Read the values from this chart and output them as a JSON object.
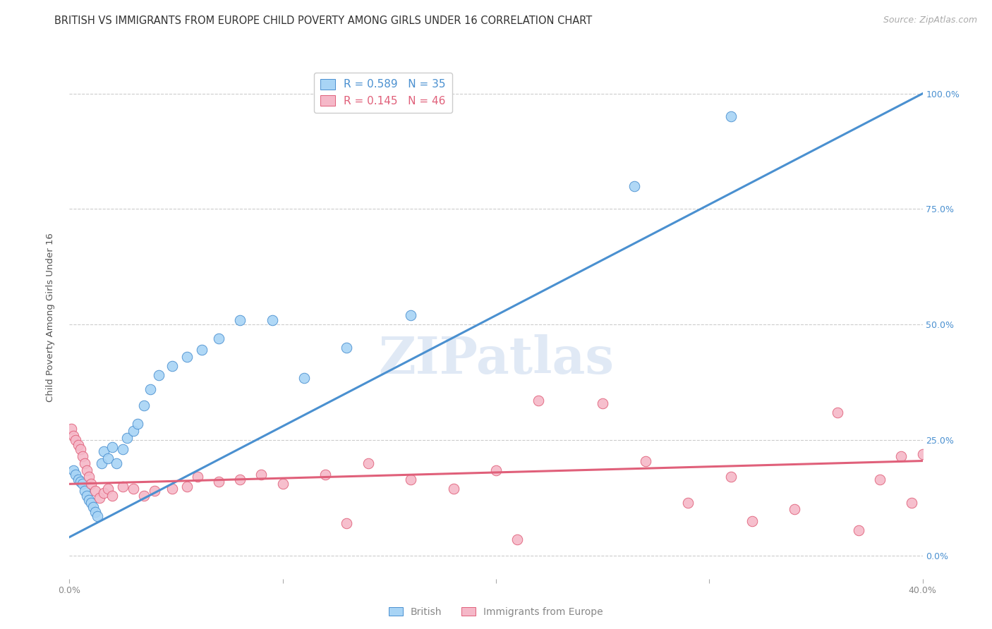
{
  "title": "BRITISH VS IMMIGRANTS FROM EUROPE CHILD POVERTY AMONG GIRLS UNDER 16 CORRELATION CHART",
  "source": "Source: ZipAtlas.com",
  "ylabel": "Child Poverty Among Girls Under 16",
  "xlabel_ticks": [
    "0.0%",
    "",
    "",
    "",
    "40.0%"
  ],
  "ylabel_ticks_right": [
    "0.0%",
    "25.0%",
    "50.0%",
    "75.0%",
    "100.0%"
  ],
  "xlim": [
    0.0,
    0.4
  ],
  "ylim": [
    -0.05,
    1.08
  ],
  "british_R": "0.589",
  "british_N": "35",
  "immigrant_R": "0.145",
  "immigrant_N": "46",
  "british_color": "#A8D4F5",
  "british_line_color": "#4A90D0",
  "immigrant_color": "#F5B8C8",
  "immigrant_line_color": "#E0607A",
  "british_line_x0": 0.0,
  "british_line_y0": 0.04,
  "british_line_x1": 0.4,
  "british_line_y1": 1.0,
  "immigrant_line_x0": 0.0,
  "immigrant_line_y0": 0.155,
  "immigrant_line_x1": 0.4,
  "immigrant_line_y1": 0.205,
  "british_scatter_x": [
    0.002,
    0.003,
    0.004,
    0.005,
    0.006,
    0.007,
    0.008,
    0.009,
    0.01,
    0.011,
    0.012,
    0.013,
    0.015,
    0.016,
    0.018,
    0.02,
    0.022,
    0.025,
    0.027,
    0.03,
    0.032,
    0.035,
    0.038,
    0.042,
    0.048,
    0.055,
    0.062,
    0.07,
    0.08,
    0.095,
    0.11,
    0.13,
    0.16,
    0.265,
    0.31
  ],
  "british_scatter_y": [
    0.185,
    0.175,
    0.165,
    0.16,
    0.155,
    0.14,
    0.13,
    0.12,
    0.115,
    0.105,
    0.095,
    0.085,
    0.2,
    0.225,
    0.21,
    0.235,
    0.2,
    0.23,
    0.255,
    0.27,
    0.285,
    0.325,
    0.36,
    0.39,
    0.41,
    0.43,
    0.445,
    0.47,
    0.51,
    0.51,
    0.385,
    0.45,
    0.52,
    0.8,
    0.95
  ],
  "immigrant_scatter_x": [
    0.001,
    0.002,
    0.003,
    0.004,
    0.005,
    0.006,
    0.007,
    0.008,
    0.009,
    0.01,
    0.012,
    0.014,
    0.016,
    0.018,
    0.02,
    0.025,
    0.03,
    0.035,
    0.04,
    0.048,
    0.055,
    0.06,
    0.07,
    0.08,
    0.09,
    0.1,
    0.12,
    0.14,
    0.16,
    0.18,
    0.2,
    0.22,
    0.25,
    0.27,
    0.29,
    0.31,
    0.32,
    0.34,
    0.36,
    0.37,
    0.38,
    0.39,
    0.395,
    0.4,
    0.21,
    0.13
  ],
  "immigrant_scatter_y": [
    0.275,
    0.26,
    0.25,
    0.24,
    0.23,
    0.215,
    0.2,
    0.185,
    0.17,
    0.155,
    0.14,
    0.125,
    0.135,
    0.145,
    0.13,
    0.15,
    0.145,
    0.13,
    0.14,
    0.145,
    0.15,
    0.17,
    0.16,
    0.165,
    0.175,
    0.155,
    0.175,
    0.2,
    0.165,
    0.145,
    0.185,
    0.335,
    0.33,
    0.205,
    0.115,
    0.17,
    0.075,
    0.1,
    0.31,
    0.055,
    0.165,
    0.215,
    0.115,
    0.22,
    0.035,
    0.07
  ],
  "watermark": "ZIPatlas",
  "background_color": "#FFFFFF",
  "grid_color": "#CCCCCC",
  "title_fontsize": 10.5,
  "axis_label_fontsize": 9.5,
  "tick_fontsize": 9,
  "legend_fontsize": 11,
  "source_fontsize": 9
}
